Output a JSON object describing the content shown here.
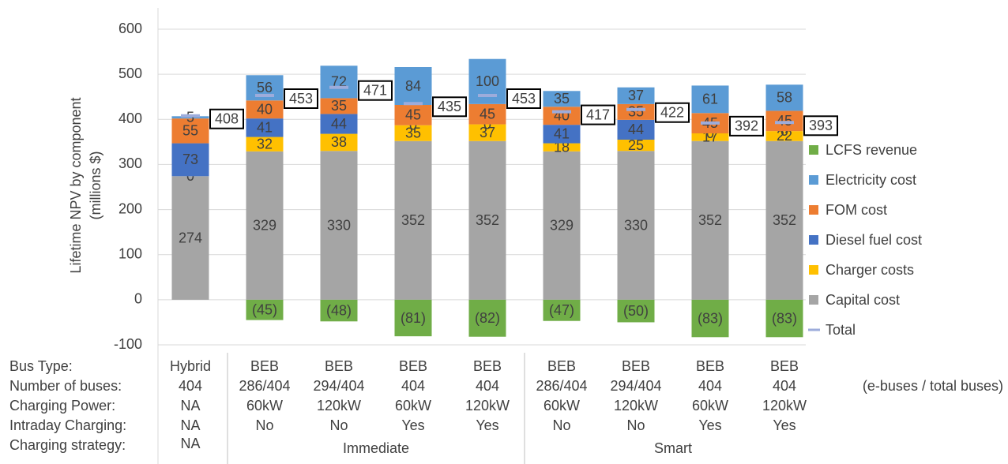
{
  "chart_data": {
    "type": "stacked_bar",
    "y_label": [
      "Lifetime NPV by component",
      "(millions $)"
    ],
    "ylim": [
      -100,
      600
    ],
    "yticks": [
      -100,
      0,
      100,
      200,
      300,
      400,
      500,
      600
    ],
    "grid": true,
    "legend": "right",
    "series": [
      {
        "name": "LCFS revenue",
        "color": "#70ad47",
        "values": [
          null,
          -45,
          -48,
          -81,
          -82,
          -47,
          -50,
          -83,
          -83
        ],
        "value_labels": [
          null,
          "(45)",
          "(48)",
          "(81)",
          "(82)",
          "(47)",
          "(50)",
          "(83)",
          "(83)"
        ]
      },
      {
        "name": "Electricity cost",
        "color": "#5b9bd5",
        "values": [
          5,
          56,
          72,
          84,
          100,
          35,
          37,
          61,
          58
        ]
      },
      {
        "name": "FOM cost",
        "color": "#ed7d31",
        "values": [
          55,
          40,
          35,
          45,
          45,
          40,
          35,
          45,
          45
        ]
      },
      {
        "name": "Diesel fuel cost",
        "color": "#4472c4",
        "values": [
          73,
          41,
          44,
          0,
          0,
          41,
          44,
          0,
          0
        ]
      },
      {
        "name": "Charger costs",
        "color": "#ffc000",
        "values": [
          0,
          32,
          38,
          35,
          37,
          18,
          25,
          17,
          22
        ]
      },
      {
        "name": "Capital cost",
        "color": "#a5a5a5",
        "values": [
          274,
          329,
          330,
          352,
          352,
          329,
          330,
          352,
          352
        ]
      }
    ],
    "total": {
      "name": "Total",
      "color": "#9dacdb",
      "values": [
        408,
        453,
        471,
        435,
        453,
        417,
        422,
        392,
        393
      ]
    },
    "category_rows": [
      {
        "label": "Bus Type:",
        "values": [
          "Hybrid",
          "BEB",
          "BEB",
          "BEB",
          "BEB",
          "BEB",
          "BEB",
          "BEB",
          "BEB"
        ]
      },
      {
        "label": "Number of buses:",
        "values": [
          "404",
          "286/404",
          "294/404",
          "404",
          "404",
          "286/404",
          "294/404",
          "404",
          "404"
        ]
      },
      {
        "label": "Charging Power:",
        "values": [
          "NA",
          "60kW",
          "120kW",
          "60kW",
          "120kW",
          "60kW",
          "120kW",
          "60kW",
          "120kW"
        ]
      },
      {
        "label": "Intraday Charging:",
        "values": [
          "NA",
          "No",
          "No",
          "Yes",
          "Yes",
          "No",
          "No",
          "Yes",
          "Yes"
        ]
      }
    ],
    "strategy_row": {
      "label": "Charging strategy:",
      "groups": [
        {
          "label": "NA",
          "count": 1
        },
        {
          "label": "Immediate",
          "count": 4
        },
        {
          "label": "Smart",
          "count": 4
        }
      ]
    },
    "note": "(e-buses / total buses)"
  }
}
